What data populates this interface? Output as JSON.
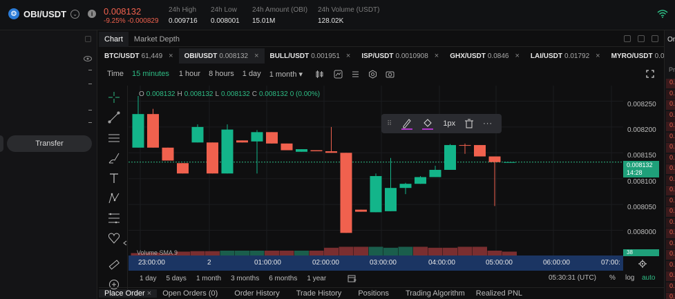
{
  "header": {
    "pair": "OBI/USDT",
    "logo_glyph": "❂",
    "chevron_glyph": "⌄",
    "info_glyph": "i",
    "price": "0.008132",
    "change": "-9.25% -0.000829",
    "stats": [
      {
        "label": "24h High",
        "value": "0.009716"
      },
      {
        "label": "24h Low",
        "value": "0.008001"
      },
      {
        "label": "24h Amount (OBI)",
        "value": "15.01M"
      },
      {
        "label": "24h Volume (USDT)",
        "value": "128.02K"
      }
    ],
    "wifi_icon": "wifi-icon"
  },
  "left_panel": {
    "transfer_label": "Transfer"
  },
  "chart_tabs": [
    {
      "label": "Chart",
      "active": true
    },
    {
      "label": "Market Depth",
      "active": false
    }
  ],
  "tickers": [
    {
      "symbol": "BTC/USDT",
      "value": "61,449",
      "close": "×"
    },
    {
      "symbol": "OBI/USDT",
      "value": "0.008132",
      "close": "×",
      "active": true
    },
    {
      "symbol": "BULL/USDT",
      "value": "0.001951",
      "close": "×"
    },
    {
      "symbol": "ISP/USDT",
      "value": "0.0010908",
      "close": "×"
    },
    {
      "symbol": "GHX/USDT",
      "value": "0.0846",
      "close": "×"
    },
    {
      "symbol": "LAI/USDT",
      "value": "0.01792",
      "close": "×"
    },
    {
      "symbol": "MYRO/USDT",
      "value": "0.07",
      "close": ""
    }
  ],
  "toolbar": {
    "time_label": "Time",
    "intervals": [
      "15 minutes",
      "1 hour",
      "8 hours",
      "1 day"
    ],
    "active_interval": "15 minutes",
    "month_dropdown": "1 month ▾"
  },
  "ohlc": {
    "o_label": "O",
    "o": "0.008132",
    "h_label": "H",
    "h": "0.008132",
    "l_label": "L",
    "l": "0.008132",
    "c_label": "C",
    "c": "0.008132",
    "chg": "0 (0.00%)"
  },
  "draw_popup": {
    "width_label": "1px"
  },
  "volume_label": "Volume SMA 9",
  "volume_value": "38",
  "last_price_tag": {
    "price": "0.008132",
    "countdown": "14:28"
  },
  "range_buttons": [
    "1 day",
    "5 days",
    "1 month",
    "3 months",
    "6 months",
    "1 year"
  ],
  "clock": "05:30:31 (UTC)",
  "pct_label": "%",
  "log_label": "log",
  "auto_label": "auto",
  "bottom_tabs": [
    {
      "label": "Place Order",
      "active": true,
      "close": "×"
    },
    {
      "label": "Open Orders (0)"
    },
    {
      "label": "Order History"
    },
    {
      "label": "Trade History"
    },
    {
      "label": "Positions"
    },
    {
      "label": "Trading Algorithm"
    },
    {
      "label": "Realized PNL"
    }
  ],
  "right_panel": {
    "header": "Or",
    "sub": "Pr",
    "cells": [
      "0.",
      "0.",
      "0.",
      "0.",
      "0.",
      "0.",
      "0.",
      "0.",
      "0.",
      "0.",
      "0.",
      "0.",
      "0.",
      "0.",
      "0.",
      "0.",
      "0.",
      "0.",
      "0.",
      "0.",
      "0.",
      "0."
    ]
  },
  "chart_data": {
    "type": "candlestick",
    "x_tick_labels": [
      "23:00:00",
      "2",
      "01:00:00",
      "02:00:00",
      "03:00:00",
      "04:00:00",
      "05:00:00",
      "06:00:00",
      "07:00:"
    ],
    "y_tick_labels": [
      "0.008250",
      "0.008200",
      "0.008150",
      "0.008100",
      "0.008050",
      "0.008000"
    ],
    "ylim": [
      0.00797,
      0.00828
    ],
    "last_price": 0.008132,
    "colors": {
      "up": "#13b58a",
      "down": "#f0614e",
      "vol_up": "#1a5e4c",
      "vol_down": "#7a2e30"
    },
    "candles": [
      {
        "o": 0.00816,
        "h": 0.00826,
        "c": 0.008225,
        "l": 0.00816
      },
      {
        "o": 0.008225,
        "h": 0.008235,
        "c": 0.00816,
        "l": 0.00816
      },
      {
        "o": 0.00816,
        "h": 0.00816,
        "c": 0.008135,
        "l": 0.008135
      },
      {
        "o": 0.00813,
        "h": 0.00813,
        "c": 0.00811,
        "l": 0.00811
      },
      {
        "o": 0.00817,
        "h": 0.008205,
        "c": 0.0082,
        "l": 0.00817
      },
      {
        "o": 0.00817,
        "h": 0.00817,
        "c": 0.00811,
        "l": 0.00811
      },
      {
        "o": 0.00811,
        "h": 0.008205,
        "c": 0.008195,
        "l": 0.00811
      },
      {
        "o": 0.008174,
        "h": 0.008174,
        "c": 0.00817,
        "l": 0.00817
      },
      {
        "o": 0.008172,
        "h": 0.008194,
        "c": 0.00819,
        "l": 0.00811
      },
      {
        "o": 0.00819,
        "h": 0.00819,
        "c": 0.008168,
        "l": 0.008168
      },
      {
        "o": 0.008168,
        "h": 0.008168,
        "c": 0.008155,
        "l": 0.008155
      },
      {
        "o": 0.008152,
        "h": 0.008157,
        "c": 0.008157,
        "l": 0.008152
      },
      {
        "o": 0.008155,
        "h": 0.008155,
        "c": 0.008153,
        "l": 0.008153
      },
      {
        "o": 0.008153,
        "h": 0.0082,
        "c": 0.00815,
        "l": 0.00815
      },
      {
        "o": 0.00815,
        "h": 0.00815,
        "c": 0.007995,
        "l": 0.007995
      },
      {
        "o": 0.00804,
        "h": 0.00804,
        "c": 0.008036,
        "l": 0.008036
      },
      {
        "o": 0.008035,
        "h": 0.00811,
        "c": 0.008105,
        "l": 0.008035
      },
      {
        "o": 0.008037,
        "h": 0.00814,
        "c": 0.008082,
        "l": 0.008037
      },
      {
        "o": 0.008082,
        "h": 0.008092,
        "c": 0.00809,
        "l": 0.00807
      },
      {
        "o": 0.00809,
        "h": 0.008105,
        "c": 0.008103,
        "l": 0.00809
      },
      {
        "o": 0.008103,
        "h": 0.008125,
        "c": 0.008117,
        "l": 0.008103
      },
      {
        "o": 0.008117,
        "h": 0.008167,
        "c": 0.008165,
        "l": 0.008117
      },
      {
        "o": 0.008165,
        "h": 0.008168,
        "c": 0.008164,
        "l": 0.008148
      },
      {
        "o": 0.008165,
        "h": 0.008165,
        "c": 0.008143,
        "l": 0.008143
      },
      {
        "o": 0.008143,
        "h": 0.008143,
        "c": 0.008132,
        "l": 0.008047
      },
      {
        "o": 0.008132,
        "h": 0.008132,
        "c": 0.008132,
        "l": 0.008132
      }
    ],
    "volume": [
      {
        "v": 0.25,
        "up": false
      },
      {
        "v": 0.3,
        "up": false
      },
      {
        "v": 0.2,
        "up": false
      },
      {
        "v": 0.4,
        "up": false
      },
      {
        "v": 0.45,
        "up": false
      },
      {
        "v": 0.45,
        "up": false
      },
      {
        "v": 0.5,
        "up": true
      },
      {
        "v": 0.5,
        "up": true
      },
      {
        "v": 0.5,
        "up": true
      },
      {
        "v": 0.5,
        "up": false
      },
      {
        "v": 0.5,
        "up": false
      },
      {
        "v": 0.5,
        "up": true
      },
      {
        "v": 0.5,
        "up": false
      },
      {
        "v": 0.8,
        "up": false
      },
      {
        "v": 0.9,
        "up": false
      },
      {
        "v": 0.9,
        "up": false
      },
      {
        "v": 0.9,
        "up": true
      },
      {
        "v": 0.8,
        "up": true
      },
      {
        "v": 0.9,
        "up": true
      },
      {
        "v": 0.9,
        "up": false
      },
      {
        "v": 0.8,
        "up": false
      },
      {
        "v": 0.8,
        "up": false
      },
      {
        "v": 0.9,
        "up": false
      },
      {
        "v": 0.9,
        "up": false
      },
      {
        "v": 0.5,
        "up": false
      },
      {
        "v": 0.4,
        "up": false
      }
    ]
  }
}
